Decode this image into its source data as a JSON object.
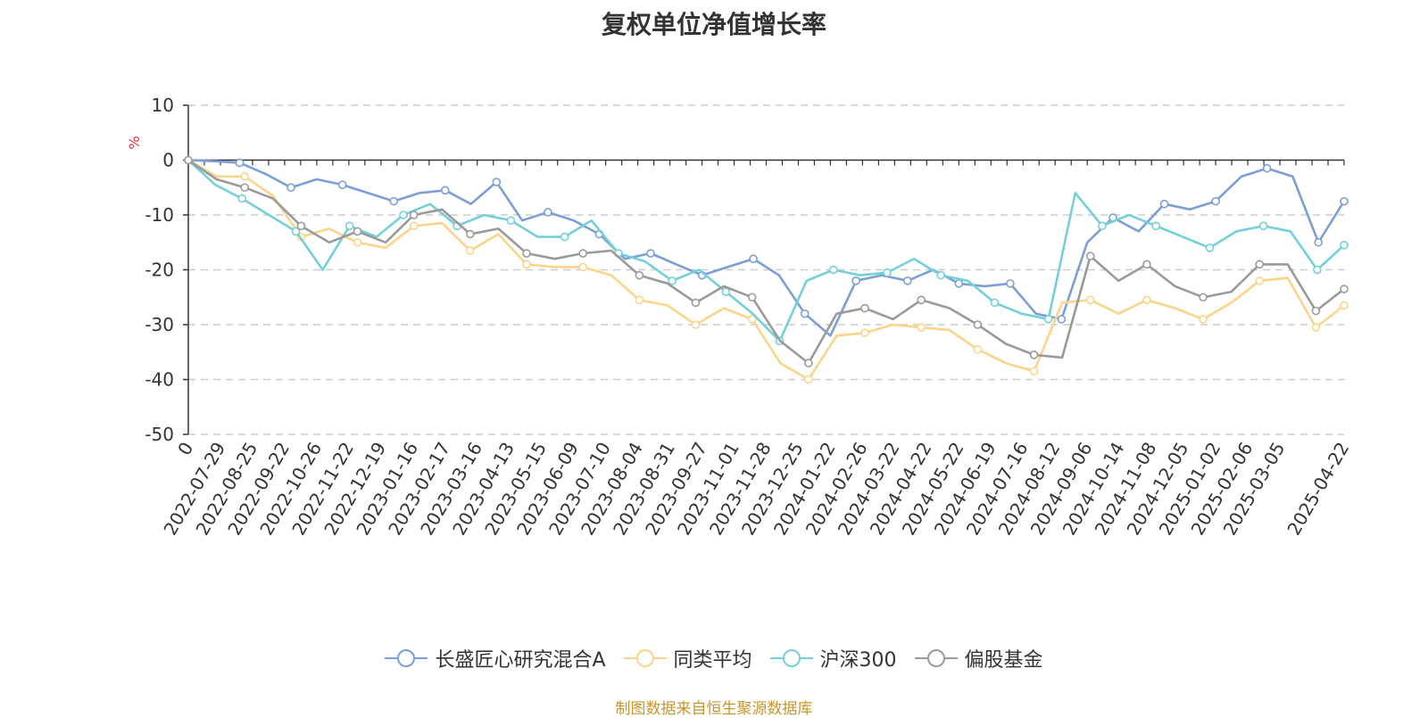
{
  "chart_data": {
    "type": "line",
    "title": "复权单位净值增长率",
    "ylabel": "%",
    "ylim": [
      -50,
      10
    ],
    "y_ticks": [
      10,
      0,
      -10,
      -20,
      -30,
      -40,
      -50
    ],
    "x_ticks": [
      "0",
      "2022-07-29",
      "2022-08-25",
      "2022-09-22",
      "2022-10-26",
      "2022-11-22",
      "2022-12-19",
      "2023-01-16",
      "2023-02-17",
      "2023-03-16",
      "2023-04-13",
      "2023-05-15",
      "2023-06-09",
      "2023-07-10",
      "2023-08-04",
      "2023-08-31",
      "2023-09-27",
      "2023-11-01",
      "2023-11-28",
      "2023-12-25",
      "2024-01-22",
      "2024-02-26",
      "2024-03-22",
      "2024-04-22",
      "2024-05-22",
      "2024-06-19",
      "2024-07-16",
      "2024-08-12",
      "2024-09-06",
      "2024-10-14",
      "2024-11-08",
      "2024-12-05",
      "2025-01-02",
      "2025-02-06",
      "2025-03-05",
      "",
      "2025-04-22"
    ],
    "grid": "horizontal dashed",
    "legend_position": "bottom",
    "series": [
      {
        "name": "长盛匠心研究混合A",
        "color": "#7b9fd4",
        "values": [
          0,
          -0.2,
          -0.5,
          -2.5,
          -5,
          -3.5,
          -4.5,
          -6,
          -7.5,
          -6,
          -5.5,
          -8,
          -4,
          -11,
          -9.5,
          -11,
          -13.5,
          -18,
          -17,
          -19,
          -21,
          -19.5,
          -18,
          -21,
          -28,
          -32,
          -22,
          -21,
          -22,
          -20,
          -22.5,
          -23,
          -22.5,
          -28,
          -29,
          -15,
          -10.5,
          -13,
          -8,
          -9,
          -7.5,
          -3,
          -1.5,
          -3,
          -15,
          -7.5
        ]
      },
      {
        "name": "同类平均",
        "color": "#fbd48a",
        "values": [
          0,
          -3,
          -3,
          -6.5,
          -14,
          -12.5,
          -15,
          -16,
          -12,
          -11.5,
          -16.5,
          -13.5,
          -19,
          -19.5,
          -19.5,
          -21,
          -25.5,
          -26.5,
          -30,
          -27,
          -29,
          -37,
          -40,
          -32,
          -31.5,
          -30,
          -30.5,
          -31,
          -34.5,
          -37,
          -38.5,
          -26,
          -25.5,
          -28,
          -25.5,
          -27,
          -29,
          -26,
          -22,
          -21.5,
          -30.5,
          -26.5
        ]
      },
      {
        "name": "沪深300",
        "color": "#74d0d8",
        "values": [
          0,
          -4.5,
          -7,
          -10,
          -13,
          -20,
          -12,
          -14,
          -10,
          -8,
          -12,
          -10,
          -11,
          -14,
          -14,
          -11,
          -17,
          -18.5,
          -22,
          -20,
          -24,
          -28,
          -33,
          -22,
          -20,
          -21,
          -20.5,
          -18,
          -21,
          -22,
          -26,
          -28,
          -29,
          -6,
          -12,
          -10,
          -12,
          -14,
          -16,
          -13,
          -12,
          -13,
          -20,
          -15.5
        ]
      },
      {
        "name": "偏股基金",
        "color": "#9a9a9a",
        "values": [
          0,
          -3.5,
          -5,
          -7,
          -12,
          -15,
          -13,
          -15,
          -10,
          -9,
          -13.5,
          -12.5,
          -17,
          -18,
          -17,
          -16.5,
          -21,
          -22.5,
          -26,
          -23,
          -25,
          -33,
          -37,
          -28,
          -27,
          -29,
          -25.5,
          -27,
          -30,
          -33.5,
          -35.5,
          -36,
          -17.5,
          -22,
          -19,
          -23,
          -25,
          -24,
          -19,
          -19,
          -27.5,
          -23.5
        ]
      }
    ]
  },
  "legend": [
    {
      "label": "长盛匠心研究混合A",
      "color": "#7b9fd4"
    },
    {
      "label": "同类平均",
      "color": "#fbd48a"
    },
    {
      "label": "沪深300",
      "color": "#74d0d8"
    },
    {
      "label": "偏股基金",
      "color": "#9a9a9a"
    }
  ],
  "source": "制图数据来自恒生聚源数据库"
}
